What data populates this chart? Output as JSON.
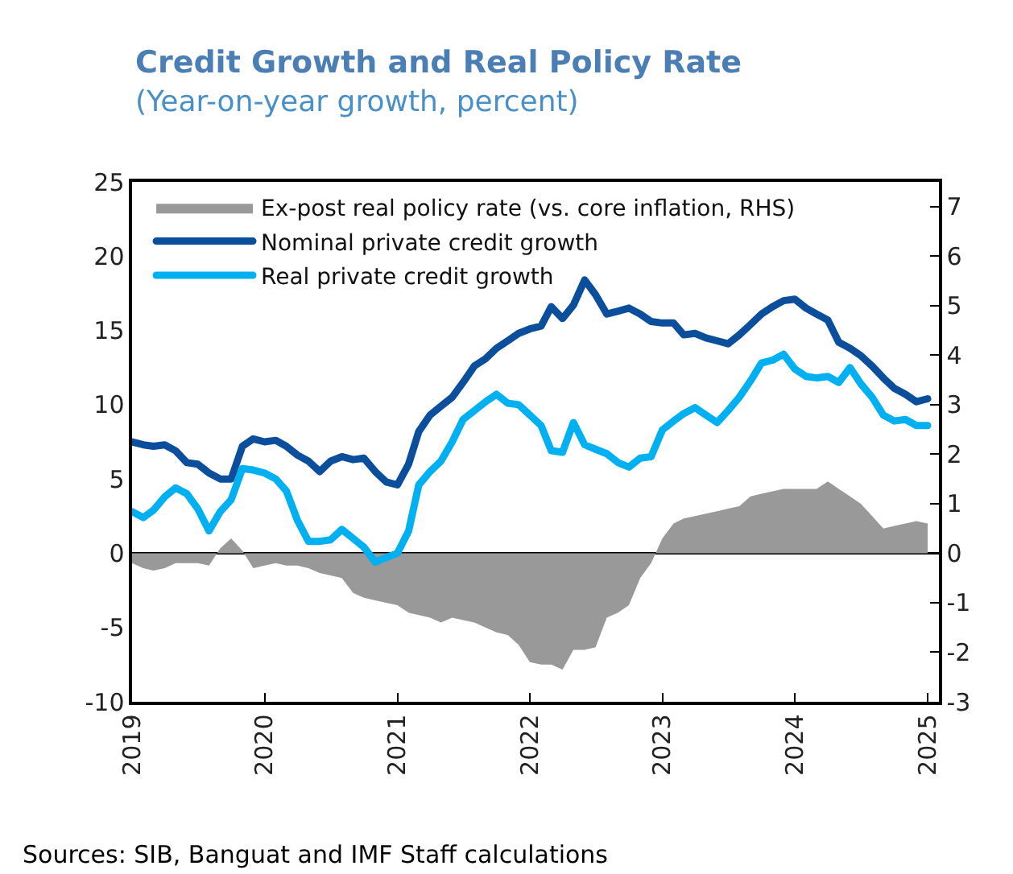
{
  "chart_data": {
    "type": "line",
    "title": "Credit Growth and Real Policy Rate",
    "subtitle": "(Year-on-year growth, percent)",
    "x": [
      "2019-01",
      "2019-02",
      "2019-03",
      "2019-04",
      "2019-05",
      "2019-06",
      "2019-07",
      "2019-08",
      "2019-09",
      "2019-10",
      "2019-11",
      "2019-12",
      "2020-01",
      "2020-02",
      "2020-03",
      "2020-04",
      "2020-05",
      "2020-06",
      "2020-07",
      "2020-08",
      "2020-09",
      "2020-10",
      "2020-11",
      "2020-12",
      "2021-01",
      "2021-02",
      "2021-03",
      "2021-04",
      "2021-05",
      "2021-06",
      "2021-07",
      "2021-08",
      "2021-09",
      "2021-10",
      "2021-11",
      "2021-12",
      "2022-01",
      "2022-02",
      "2022-03",
      "2022-04",
      "2022-05",
      "2022-06",
      "2022-07",
      "2022-08",
      "2022-09",
      "2022-10",
      "2022-11",
      "2022-12",
      "2023-01",
      "2023-02",
      "2023-03",
      "2023-04",
      "2023-05",
      "2023-06",
      "2023-07",
      "2023-08",
      "2023-09",
      "2023-10",
      "2023-11",
      "2023-12",
      "2024-01",
      "2024-02",
      "2024-03",
      "2024-04",
      "2024-05",
      "2024-06",
      "2024-07",
      "2024-08",
      "2024-09",
      "2024-10",
      "2024-11",
      "2024-12",
      "2025-01"
    ],
    "series": [
      {
        "name": "Ex-post real policy rate (vs. core inflation, RHS)",
        "type": "area",
        "axis": "y2",
        "color": "#999999",
        "values": [
          -0.2,
          -0.3,
          -0.35,
          -0.3,
          -0.2,
          -0.2,
          -0.2,
          -0.25,
          0.1,
          0.3,
          0.05,
          -0.3,
          -0.25,
          -0.2,
          -0.25,
          -0.25,
          -0.3,
          -0.4,
          -0.45,
          -0.5,
          -0.8,
          -0.9,
          -0.95,
          -1.0,
          -1.05,
          -1.2,
          -1.25,
          -1.3,
          -1.4,
          -1.3,
          -1.35,
          -1.4,
          -1.5,
          -1.6,
          -1.65,
          -1.85,
          -2.2,
          -2.25,
          -2.25,
          -2.35,
          -1.95,
          -1.95,
          -1.9,
          -1.3,
          -1.2,
          -1.05,
          -0.5,
          -0.2,
          0.3,
          0.6,
          0.7,
          0.75,
          0.8,
          0.85,
          0.9,
          0.95,
          1.15,
          1.2,
          1.25,
          1.3,
          1.3,
          1.3,
          1.3,
          1.45,
          1.3,
          1.15,
          1.0,
          0.75,
          0.5,
          0.55,
          0.6,
          0.65,
          0.6
        ]
      },
      {
        "name": "Nominal private credit growth",
        "color": "#0b4f9c",
        "values": [
          7.5,
          7.3,
          7.2,
          7.3,
          6.9,
          6.1,
          6.0,
          5.4,
          5.0,
          5.0,
          7.2,
          7.7,
          7.5,
          7.6,
          7.2,
          6.6,
          6.2,
          5.5,
          6.2,
          6.5,
          6.3,
          6.4,
          5.5,
          4.8,
          4.6,
          6.0,
          8.2,
          9.3,
          9.9,
          10.5,
          11.5,
          12.6,
          13.1,
          13.8,
          14.3,
          14.8,
          15.1,
          15.3,
          16.6,
          15.8,
          16.7,
          18.4,
          17.4,
          16.1,
          16.3,
          16.5,
          16.1,
          15.6,
          15.5,
          15.5,
          14.7,
          14.8,
          14.5,
          14.3,
          14.1,
          14.7,
          15.4,
          16.1,
          16.6,
          17.0,
          17.1,
          16.5,
          16.1,
          15.7,
          14.2,
          13.8,
          13.3,
          12.6,
          11.8,
          11.1,
          10.7,
          10.2,
          10.4
        ]
      },
      {
        "name": "Real private credit growth",
        "color": "#00b0f0",
        "values": [
          2.8,
          2.4,
          2.9,
          3.8,
          4.4,
          4.0,
          3.0,
          1.5,
          2.8,
          3.6,
          5.7,
          5.6,
          5.4,
          5.0,
          4.2,
          2.2,
          0.8,
          0.8,
          0.9,
          1.6,
          1.0,
          0.4,
          -0.6,
          -0.3,
          0.0,
          1.5,
          4.6,
          5.5,
          6.2,
          7.5,
          9.0,
          9.6,
          10.2,
          10.7,
          10.1,
          10.0,
          9.3,
          8.6,
          6.9,
          6.8,
          8.8,
          7.3,
          7.0,
          6.7,
          6.1,
          5.8,
          6.4,
          6.5,
          8.3,
          8.9,
          9.4,
          9.8,
          9.3,
          8.8,
          9.6,
          10.5,
          11.6,
          12.8,
          13.0,
          13.4,
          12.4,
          11.9,
          11.8,
          11.9,
          11.5,
          12.5,
          11.4,
          10.5,
          9.3,
          8.9,
          9.0,
          8.6,
          8.6
        ]
      }
    ],
    "xlim": [
      "2019-01-01",
      "2025-02-01"
    ],
    "xticks": [
      {
        "value": "2019-01-01",
        "label": "2019"
      },
      {
        "value": "2020-01-01",
        "label": "2020"
      },
      {
        "value": "2021-01-01",
        "label": "2021"
      },
      {
        "value": "2022-01-01",
        "label": "2022"
      },
      {
        "value": "2023-01-01",
        "label": "2023"
      },
      {
        "value": "2024-01-01",
        "label": "2024"
      },
      {
        "value": "2025-01-01",
        "label": "2025"
      }
    ],
    "ylim": [
      -10,
      25
    ],
    "yticks": [
      -10,
      -5,
      0,
      5,
      10,
      15,
      20,
      25
    ],
    "y2lim": [
      -3,
      7.5
    ],
    "ref_lines": [
      {
        "axis": "y",
        "value": 0,
        "color": "#000000"
      }
    ],
    "y2ticks": [
      -3,
      -2,
      -1,
      0,
      1,
      2,
      3,
      4,
      5,
      6,
      7
    ],
    "grid": false,
    "legend": "top left",
    "line_style": "solid",
    "marker": "none",
    "annotations": [
      "Sources: SIB, Banguat and IMF Staff calculations"
    ]
  }
}
